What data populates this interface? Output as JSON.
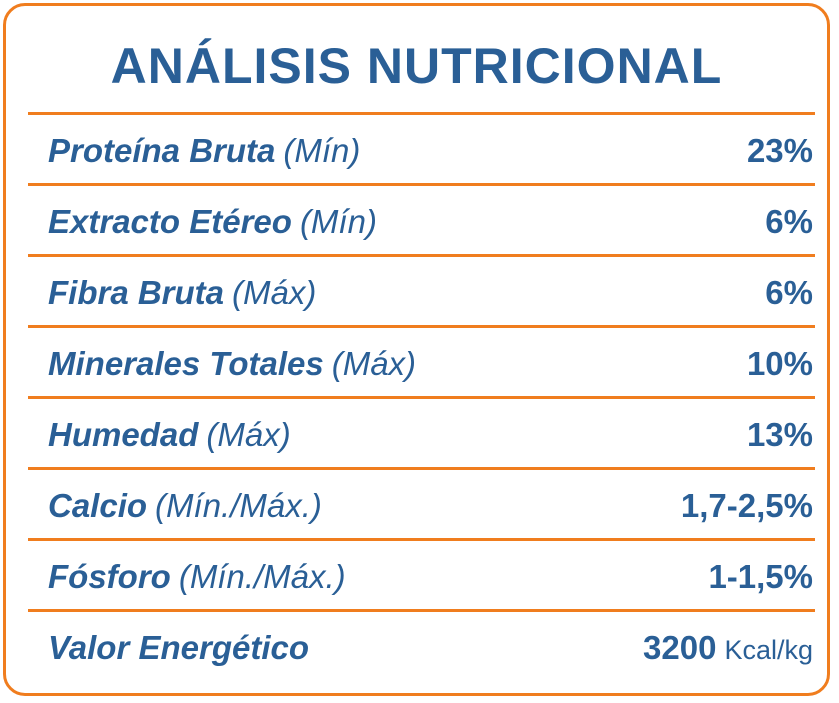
{
  "title": "ANÁLISIS NUTRICIONAL",
  "rows": [
    {
      "name": "Proteína Bruta",
      "qualifier": "(Mín)",
      "value": "23%"
    },
    {
      "name": "Extracto Etéreo",
      "qualifier": "(Mín)",
      "value": "6%"
    },
    {
      "name": "Fibra Bruta",
      "qualifier": "(Máx)",
      "value": "6%"
    },
    {
      "name": "Minerales Totales",
      "qualifier": "(Máx)",
      "value": "10%"
    },
    {
      "name": "Humedad",
      "qualifier": "(Máx)",
      "value": "13%"
    },
    {
      "name": "Calcio",
      "qualifier": "(Mín./Máx.)",
      "value": "1,7-2,5%"
    },
    {
      "name": "Fósforo",
      "qualifier": "(Mín./Máx.)",
      "value": "1-1,5%"
    },
    {
      "name": "Valor Energético",
      "value": "3200",
      "unit": "Kcal/kg"
    }
  ],
  "colors": {
    "border": "#f07d1e",
    "text": "#2a5f96"
  }
}
